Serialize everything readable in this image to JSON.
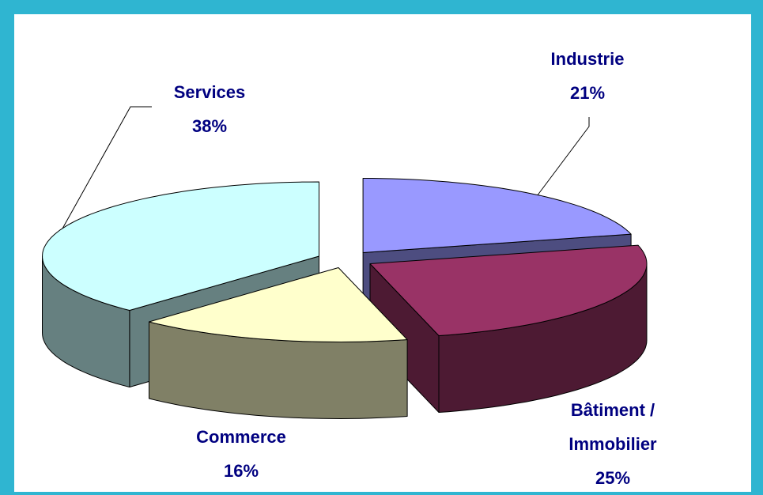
{
  "chart_data": {
    "type": "pie",
    "categories": [
      "Industrie",
      "Bâtiment / Immobilier",
      "Commerce",
      "Services"
    ],
    "values": [
      21,
      25,
      16,
      38
    ],
    "value_labels": [
      "21%",
      "25%",
      "16%",
      "38%"
    ],
    "colors": [
      "#9999ff",
      "#993366",
      "#ffffcc",
      "#ccffff"
    ],
    "side_colors": [
      "#4d4d80",
      "#4d1a33",
      "#808066",
      "#668080"
    ]
  }
}
